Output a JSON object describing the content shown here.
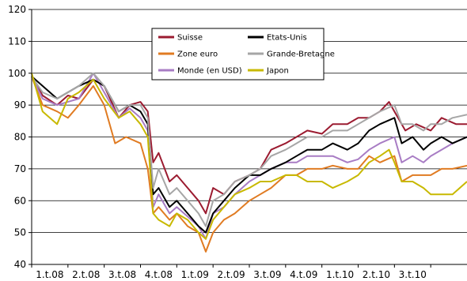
{
  "chart_data": {
    "type": "line",
    "title": "",
    "xlabel": "",
    "ylabel": "",
    "ylim": [
      40,
      120
    ],
    "yticks": [
      40,
      50,
      60,
      70,
      80,
      90,
      100,
      110,
      120
    ],
    "xlim": [
      0,
      12
    ],
    "grid": "horizontal",
    "legend_position": "top-center",
    "categories": [
      "1.t.08",
      "2.t.08",
      "3.t.08",
      "4.t.08",
      "1.t.09",
      "2.t.09",
      "3.t.09",
      "4.t.09",
      "1.t.10",
      "2.t.10",
      "3.t.10"
    ],
    "series": [
      {
        "name": "Suisse",
        "color": "#9b1b30",
        "x": [
          0,
          0.3,
          0.7,
          1,
          1.3,
          1.7,
          2,
          2.4,
          2.7,
          3,
          3.2,
          3.35,
          3.5,
          3.8,
          4,
          4.3,
          4.6,
          4.8,
          5,
          5.3,
          5.6,
          6,
          6.3,
          6.6,
          7,
          7.3,
          7.6,
          8,
          8.3,
          8.7,
          9,
          9.3,
          9.6,
          9.85,
          10,
          10.3,
          10.6,
          11,
          11.3,
          11.7,
          12
        ],
        "y": [
          99,
          93,
          90,
          93,
          92,
          98,
          96,
          86,
          90,
          91,
          88,
          72,
          75,
          66,
          68,
          64,
          60,
          56,
          64,
          62,
          66,
          68,
          70,
          76,
          78,
          80,
          82,
          81,
          84,
          84,
          86,
          86,
          88,
          91,
          88,
          82,
          84,
          82,
          86,
          84,
          84
        ]
      },
      {
        "name": "Zone euro",
        "color": "#e07b22",
        "x": [
          0,
          0.3,
          0.7,
          1,
          1.3,
          1.7,
          2,
          2.3,
          2.6,
          3,
          3.2,
          3.35,
          3.5,
          3.8,
          4,
          4.3,
          4.6,
          4.8,
          5,
          5.3,
          5.6,
          6,
          6.3,
          6.6,
          7,
          7.3,
          7.6,
          8,
          8.3,
          8.7,
          9,
          9.3,
          9.6,
          10,
          10.2,
          10.5,
          10.8,
          11,
          11.3,
          11.6,
          12
        ],
        "y": [
          99,
          90,
          88,
          86,
          90,
          96,
          90,
          78,
          80,
          78,
          70,
          56,
          58,
          54,
          56,
          52,
          50,
          44,
          50,
          54,
          56,
          60,
          62,
          64,
          68,
          68,
          70,
          70,
          71,
          70,
          70,
          74,
          72,
          74,
          66,
          68,
          68,
          68,
          70,
          70,
          71
        ]
      },
      {
        "name": "Monde (en USD)",
        "color": "#a87cc4",
        "x": [
          0,
          0.3,
          0.7,
          1,
          1.3,
          1.7,
          2,
          2.4,
          2.7,
          3,
          3.2,
          3.35,
          3.5,
          3.8,
          4,
          4.3,
          4.6,
          4.8,
          5,
          5.3,
          5.6,
          6,
          6.3,
          6.6,
          7,
          7.3,
          7.6,
          8,
          8.3,
          8.7,
          9,
          9.3,
          9.6,
          10,
          10.2,
          10.5,
          10.8,
          11,
          11.3,
          11.6,
          12
        ],
        "y": [
          99,
          92,
          90,
          91,
          92,
          100,
          94,
          86,
          89,
          86,
          82,
          58,
          62,
          56,
          58,
          55,
          52,
          48,
          56,
          58,
          62,
          66,
          68,
          70,
          72,
          72,
          74,
          74,
          74,
          72,
          73,
          76,
          78,
          80,
          72,
          74,
          72,
          74,
          76,
          78,
          80
        ]
      },
      {
        "name": "Etats-Unis",
        "color": "#000000",
        "x": [
          0,
          0.3,
          0.7,
          1,
          1.3,
          1.7,
          2,
          2.4,
          2.7,
          3,
          3.2,
          3.35,
          3.5,
          3.8,
          4,
          4.3,
          4.6,
          4.8,
          5,
          5.3,
          5.6,
          6,
          6.3,
          6.6,
          7,
          7.3,
          7.6,
          8,
          8.3,
          8.7,
          9,
          9.3,
          9.6,
          10,
          10.2,
          10.5,
          10.8,
          11,
          11.3,
          11.6,
          12
        ],
        "y": [
          99,
          96,
          92,
          94,
          96,
          98,
          96,
          88,
          90,
          88,
          84,
          62,
          64,
          58,
          60,
          56,
          52,
          50,
          56,
          60,
          64,
          68,
          68,
          70,
          72,
          74,
          76,
          76,
          78,
          76,
          78,
          82,
          84,
          86,
          78,
          80,
          76,
          78,
          80,
          78,
          80
        ]
      },
      {
        "name": "Grande-Bretagne",
        "color": "#a6a6a6",
        "x": [
          0,
          0.3,
          0.7,
          1,
          1.3,
          1.7,
          2,
          2.4,
          2.7,
          3,
          3.2,
          3.35,
          3.5,
          3.8,
          4,
          4.3,
          4.6,
          4.8,
          5,
          5.3,
          5.6,
          6,
          6.3,
          6.6,
          7,
          7.3,
          7.6,
          8,
          8.3,
          8.7,
          9,
          9.3,
          9.6,
          10,
          10.2,
          10.5,
          10.8,
          11,
          11.3,
          11.6,
          12
        ],
        "y": [
          99,
          94,
          92,
          94,
          96,
          100,
          96,
          88,
          90,
          90,
          86,
          64,
          70,
          62,
          64,
          60,
          56,
          52,
          60,
          62,
          66,
          68,
          70,
          74,
          76,
          78,
          80,
          80,
          82,
          82,
          84,
          86,
          88,
          90,
          84,
          84,
          82,
          84,
          84,
          86,
          87
        ]
      },
      {
        "name": "Japon",
        "color": "#c8b900",
        "x": [
          0,
          0.3,
          0.7,
          1,
          1.3,
          1.7,
          2,
          2.4,
          2.7,
          3,
          3.2,
          3.35,
          3.5,
          3.8,
          4,
          4.3,
          4.6,
          4.8,
          5,
          5.3,
          5.6,
          6,
          6.3,
          6.6,
          7,
          7.3,
          7.6,
          8,
          8.3,
          8.7,
          9,
          9.3,
          9.6,
          9.85,
          10,
          10.2,
          10.5,
          10.8,
          11,
          11.3,
          11.6,
          12
        ],
        "y": [
          100,
          88,
          84,
          92,
          94,
          98,
          92,
          86,
          88,
          84,
          80,
          56,
          54,
          52,
          56,
          54,
          50,
          48,
          54,
          58,
          62,
          64,
          66,
          66,
          68,
          68,
          66,
          66,
          64,
          66,
          68,
          72,
          74,
          76,
          72,
          66,
          66,
          64,
          62,
          62,
          62,
          66
        ]
      }
    ]
  }
}
